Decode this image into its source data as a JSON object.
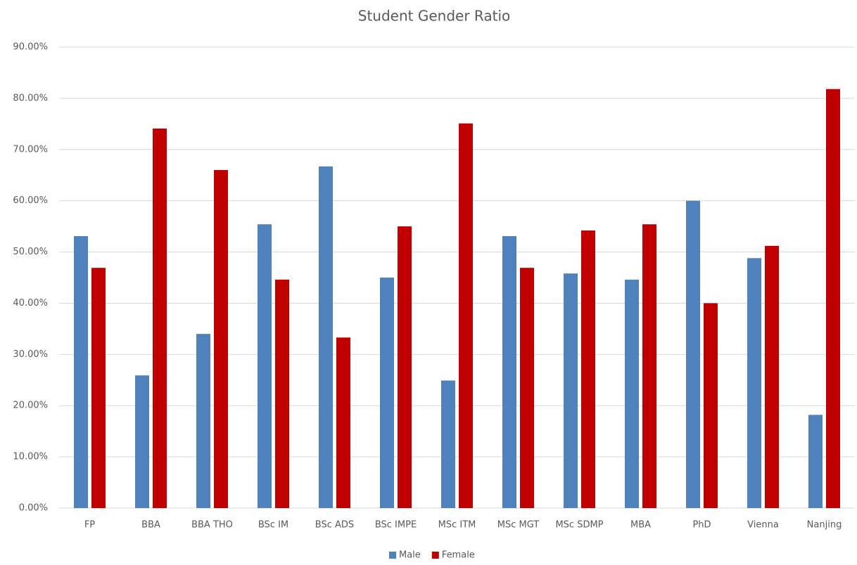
{
  "chart_data": {
    "type": "bar",
    "title": "Student Gender Ratio",
    "categories": [
      "FP",
      "BBA",
      "BBA THO",
      "BSc IM",
      "BSc ADS",
      "BSc IMPE",
      "MSc ITM",
      "MSc MGT",
      "MSc SDMP",
      "MBA",
      "PhD",
      "Vienna",
      "Nanjing"
    ],
    "series": [
      {
        "name": "Male",
        "color": "#4f81bd",
        "values": [
          53.1,
          25.9,
          34.0,
          55.4,
          66.7,
          45.0,
          24.9,
          53.1,
          45.8,
          44.6,
          60.0,
          48.8,
          18.2
        ]
      },
      {
        "name": "Female",
        "color": "#c00000",
        "values": [
          46.9,
          74.1,
          66.0,
          44.6,
          33.3,
          55.0,
          75.1,
          46.9,
          54.2,
          55.4,
          40.0,
          51.2,
          81.8
        ]
      }
    ],
    "ylim": [
      0,
      90
    ],
    "yticks": [
      {
        "value": 0,
        "label": "0.00%"
      },
      {
        "value": 10,
        "label": "10.00%"
      },
      {
        "value": 20,
        "label": "20.00%"
      },
      {
        "value": 30,
        "label": "30.00%"
      },
      {
        "value": 40,
        "label": "40.00%"
      },
      {
        "value": 50,
        "label": "50.00%"
      },
      {
        "value": 60,
        "label": "60.00%"
      },
      {
        "value": 70,
        "label": "70.00%"
      },
      {
        "value": 80,
        "label": "80.00%"
      },
      {
        "value": 90,
        "label": "90.00%"
      }
    ],
    "grid": true,
    "legend": "bottom"
  }
}
